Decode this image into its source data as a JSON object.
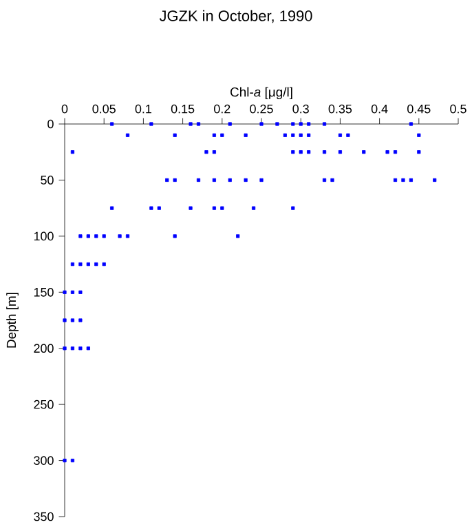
{
  "chart_data": {
    "type": "scatter",
    "title": "JGZK in October, 1990",
    "xlabel": "Chl-*a* [μg/l]",
    "ylabel": "Depth [m]",
    "x": [
      0.06,
      0.11,
      0.16,
      0.17,
      0.21,
      0.25,
      0.27,
      0.29,
      0.3,
      0.31,
      0.33,
      0.44,
      0.08,
      0.14,
      0.19,
      0.2,
      0.23,
      0.28,
      0.29,
      0.3,
      0.31,
      0.35,
      0.36,
      0.45,
      0.01,
      0.18,
      0.19,
      0.29,
      0.3,
      0.31,
      0.33,
      0.35,
      0.38,
      0.41,
      0.42,
      0.45,
      0.13,
      0.14,
      0.17,
      0.19,
      0.21,
      0.23,
      0.25,
      0.33,
      0.34,
      0.42,
      0.43,
      0.44,
      0.47,
      0.06,
      0.11,
      0.12,
      0.16,
      0.19,
      0.2,
      0.24,
      0.29,
      0.02,
      0.03,
      0.04,
      0.05,
      0.07,
      0.08,
      0.14,
      0.22,
      0.01,
      0.02,
      0.03,
      0.04,
      0.05,
      0,
      0.01,
      0.02,
      0,
      0.01,
      0.02,
      0,
      0.01,
      0.02,
      0.03,
      0,
      0.01
    ],
    "values": [
      0,
      0,
      0,
      0,
      0,
      0,
      0,
      0,
      0,
      0,
      0,
      0,
      10,
      10,
      10,
      10,
      10,
      10,
      10,
      10,
      10,
      10,
      10,
      10,
      25,
      25,
      25,
      25,
      25,
      25,
      25,
      25,
      25,
      25,
      25,
      25,
      50,
      50,
      50,
      50,
      50,
      50,
      50,
      50,
      50,
      50,
      50,
      50,
      50,
      75,
      75,
      75,
      75,
      75,
      75,
      75,
      75,
      100,
      100,
      100,
      100,
      100,
      100,
      100,
      100,
      125,
      125,
      125,
      125,
      125,
      150,
      150,
      150,
      175,
      175,
      175,
      200,
      200,
      200,
      200,
      300,
      300
    ],
    "color": "#0000ff",
    "marker": "square",
    "xlim": [
      0,
      0.5
    ],
    "xticks": [
      0,
      0.05,
      0.1,
      0.15,
      0.2,
      0.25,
      0.3,
      0.35,
      0.4,
      0.45,
      0.5
    ],
    "ylim": [
      350,
      0
    ],
    "yticks": [
      0,
      50,
      100,
      150,
      200,
      250,
      300,
      350
    ]
  }
}
